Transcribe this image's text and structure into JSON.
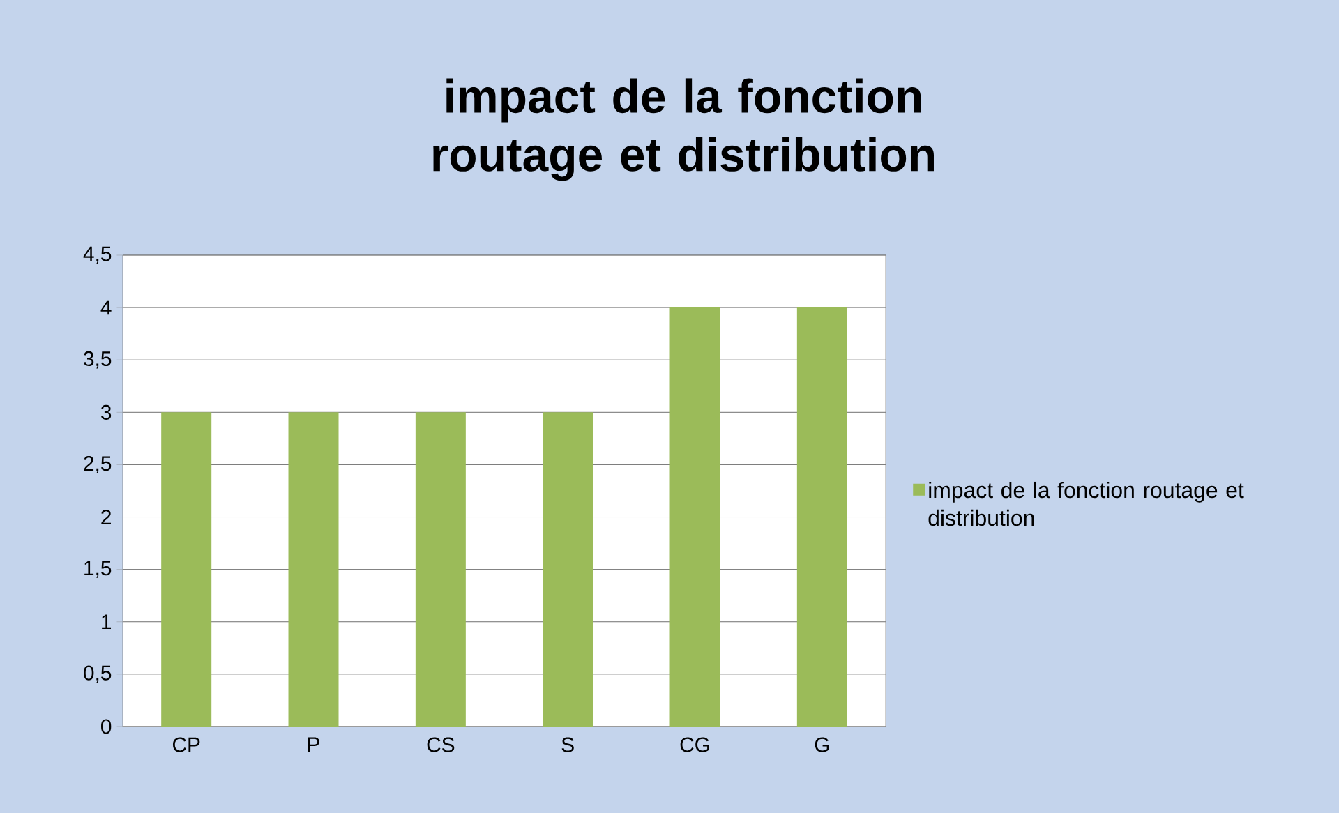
{
  "chart_data": {
    "type": "bar",
    "title": "impact de la fonction routage et distribution",
    "categories": [
      "CP",
      "P",
      "CS",
      "S",
      "CG",
      "G"
    ],
    "series": [
      {
        "name": "impact de la fonction routage et distribution",
        "color": "#9bbb59",
        "values": [
          3,
          3,
          3,
          3,
          4,
          4
        ]
      }
    ],
    "ylim": [
      0,
      4.5
    ],
    "yticks": [
      0,
      {
        "value": 0.5,
        "label": "0,5"
      },
      1,
      {
        "value": 1.5,
        "label": "1,5"
      },
      2,
      {
        "value": 2.5,
        "label": "2,5"
      },
      3,
      {
        "value": 3.5,
        "label": "3,5"
      },
      4,
      {
        "value": 4.5,
        "label": "4,5"
      }
    ],
    "grid": "y",
    "legend": "right"
  }
}
